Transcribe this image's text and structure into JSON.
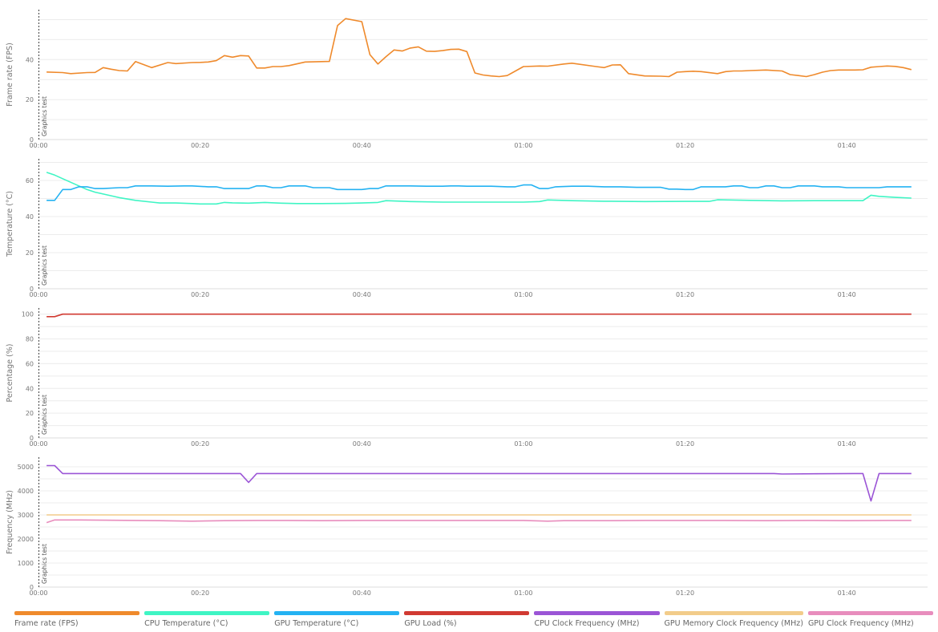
{
  "marker_label": "Graphics test",
  "x_ticks": [
    "00:00",
    "00:20",
    "00:40",
    "01:00",
    "01:20",
    "01:40"
  ],
  "x_tick_values": [
    0,
    20,
    40,
    60,
    80,
    100
  ],
  "colors": {
    "fps": "#ef8a2c",
    "cpu_temp": "#3ff5c4",
    "gpu_temp": "#24b2f2",
    "gpu_load": "#d13a32",
    "cpu_clock": "#9b55d6",
    "gpu_mem_clock": "#f2cc8a",
    "gpu_clock": "#e88dbd"
  },
  "legend": [
    {
      "label": "Frame rate (FPS)",
      "color": "#ef8a2c"
    },
    {
      "label": "CPU Temperature (°C)",
      "color": "#3ff5c4"
    },
    {
      "label": "GPU Temperature (°C)",
      "color": "#24b2f2"
    },
    {
      "label": "GPU Load (%)",
      "color": "#d13a32"
    },
    {
      "label": "CPU Clock Frequency (MHz)",
      "color": "#9b55d6"
    },
    {
      "label": "GPU Memory Clock Frequency (MHz)",
      "color": "#f2cc8a"
    },
    {
      "label": "GPU Clock Frequency (MHz)",
      "color": "#e88dbd"
    }
  ],
  "chart_data": [
    {
      "type": "line",
      "ylabel": "Frame rate (FPS)",
      "xlim": [
        0,
        110
      ],
      "ylim": [
        0,
        65
      ],
      "y_ticks": [
        0,
        20,
        40
      ],
      "grid": true,
      "series": [
        {
          "name": "Frame rate (FPS)",
          "color_key": "fps",
          "x": [
            1,
            3,
            4,
            6,
            7,
            8,
            9,
            10,
            11,
            12,
            14,
            16,
            17,
            19,
            20,
            21,
            22,
            23,
            24,
            25,
            26,
            27,
            28,
            29,
            30,
            31,
            33,
            35,
            36,
            37,
            38,
            40,
            41,
            42,
            43,
            44,
            45,
            46,
            47,
            48,
            49,
            50,
            51,
            52,
            53,
            54,
            55,
            56,
            57,
            58,
            60,
            62,
            63,
            65,
            66,
            69,
            70,
            71,
            72,
            73,
            75,
            77,
            78,
            79,
            80,
            81,
            82,
            84,
            85,
            86,
            87,
            88,
            90,
            92,
            93,
            94,
            95,
            96,
            97,
            98,
            99,
            101,
            102,
            103,
            104,
            105,
            106,
            107,
            108
          ],
          "values": [
            33.8,
            33.5,
            33.0,
            33.5,
            33.6,
            36.0,
            35.2,
            34.5,
            34.3,
            39.0,
            36.0,
            38.5,
            38.0,
            38.5,
            38.6,
            38.8,
            39.5,
            42.0,
            41.2,
            42.0,
            41.8,
            35.8,
            35.8,
            36.5,
            36.5,
            37.0,
            38.8,
            39.0,
            39.1,
            57.0,
            60.5,
            59.0,
            42.5,
            37.8,
            41.5,
            44.8,
            44.3,
            45.8,
            46.4,
            44.2,
            44.1,
            44.5,
            45.1,
            45.2,
            44.0,
            33.3,
            32.3,
            31.8,
            31.5,
            32.0,
            36.5,
            36.8,
            36.7,
            37.8,
            38.2,
            36.5,
            36.0,
            37.3,
            37.4,
            33.0,
            31.8,
            31.7,
            31.5,
            33.7,
            34.0,
            34.2,
            34.0,
            33.0,
            34.0,
            34.3,
            34.3,
            34.5,
            34.8,
            34.3,
            32.5,
            32.0,
            31.5,
            32.5,
            33.7,
            34.5,
            34.8,
            34.8,
            34.9,
            36.2,
            36.5,
            36.8,
            36.6,
            36.0,
            35.0
          ]
        }
      ]
    },
    {
      "type": "line",
      "ylabel": "Temperature (°C)",
      "xlim": [
        0,
        110
      ],
      "ylim": [
        0,
        72
      ],
      "y_ticks": [
        0,
        20,
        40,
        60
      ],
      "grid": true,
      "series": [
        {
          "name": "CPU Temperature (°C)",
          "color_key": "cpu_temp",
          "x": [
            1,
            2,
            3,
            4,
            5,
            6,
            7,
            8,
            10,
            12,
            14,
            15,
            17,
            19,
            20,
            22,
            23,
            24,
            26,
            28,
            30,
            32,
            35,
            38,
            40,
            42,
            43,
            46,
            50,
            55,
            60,
            62,
            63,
            66,
            70,
            75,
            80,
            83,
            84,
            88,
            92,
            96,
            100,
            102,
            103,
            104,
            106,
            108
          ],
          "values": [
            64.5,
            63.0,
            61.0,
            59.0,
            57.0,
            55.0,
            53.5,
            52.5,
            50.5,
            49.0,
            48.0,
            47.5,
            47.5,
            47.2,
            47.0,
            47.0,
            47.8,
            47.6,
            47.4,
            47.8,
            47.4,
            47.2,
            47.2,
            47.3,
            47.5,
            47.8,
            48.8,
            48.3,
            48.0,
            48.0,
            48.0,
            48.3,
            49.2,
            48.8,
            48.5,
            48.3,
            48.4,
            48.4,
            49.3,
            49.0,
            48.7,
            48.8,
            48.8,
            48.8,
            51.8,
            51.2,
            50.6,
            50.2
          ]
        },
        {
          "name": "GPU Temperature (°C)",
          "color_key": "gpu_temp",
          "x": [
            1,
            2,
            3,
            4,
            5,
            6,
            7,
            8,
            10,
            11,
            12,
            14,
            16,
            18,
            19,
            21,
            22,
            23,
            24,
            25,
            26,
            27,
            28,
            29,
            30,
            31,
            32,
            33,
            34,
            35,
            36,
            37,
            38,
            39,
            40,
            41,
            42,
            43,
            44,
            46,
            48,
            49,
            50,
            51,
            52,
            53,
            54,
            56,
            58,
            59,
            60,
            61,
            62,
            63,
            64,
            66,
            68,
            70,
            72,
            74,
            76,
            77,
            78,
            79,
            80,
            81,
            82,
            84,
            85,
            86,
            87,
            88,
            89,
            90,
            91,
            92,
            93,
            94,
            95,
            96,
            97,
            98,
            99,
            100,
            101,
            102,
            103,
            104,
            105,
            106,
            107,
            108
          ],
          "values": [
            49,
            49,
            55,
            55,
            56.5,
            56.5,
            55.5,
            55.5,
            56,
            56,
            57,
            57,
            56.8,
            57,
            57,
            56.5,
            56.5,
            55.5,
            55.5,
            55.5,
            55.5,
            57,
            57,
            56,
            56,
            57,
            57,
            57,
            56,
            56,
            56,
            55,
            55,
            55,
            55,
            55.5,
            55.5,
            57,
            57,
            57,
            56.8,
            56.8,
            56.8,
            57,
            57,
            56.8,
            56.8,
            56.8,
            56.5,
            56.5,
            57.5,
            57.5,
            55.5,
            55.5,
            56.5,
            56.8,
            56.8,
            56.5,
            56.5,
            56.2,
            56.2,
            56.2,
            55.2,
            55.2,
            55,
            55,
            56.5,
            56.5,
            56.5,
            57,
            57,
            56,
            56,
            57,
            57,
            56,
            56,
            57,
            57,
            57,
            56.5,
            56.5,
            56.5,
            56,
            56,
            56,
            56,
            56,
            56.5,
            56.5,
            56.5,
            56.5
          ]
        }
      ]
    },
    {
      "type": "line",
      "ylabel": "Percentage (%)",
      "xlim": [
        0,
        110
      ],
      "ylim": [
        0,
        105
      ],
      "y_ticks": [
        0,
        20,
        40,
        60,
        80,
        100
      ],
      "grid": true,
      "series": [
        {
          "name": "GPU Load (%)",
          "color_key": "gpu_load",
          "x": [
            1,
            2,
            3,
            108
          ],
          "values": [
            98,
            98,
            100,
            100
          ]
        }
      ]
    },
    {
      "type": "line",
      "ylabel": "Frequency (MHz)",
      "xlim": [
        0,
        110
      ],
      "ylim": [
        0,
        5400
      ],
      "y_ticks": [
        0,
        1000,
        2000,
        3000,
        4000,
        5000
      ],
      "grid": true,
      "series": [
        {
          "name": "CPU Clock Frequency (MHz)",
          "color_key": "cpu_clock",
          "x": [
            1,
            2,
            3,
            25,
            26,
            27,
            91,
            92,
            101,
            102,
            103,
            104,
            105,
            108
          ],
          "values": [
            5050,
            5050,
            4720,
            4720,
            4350,
            4720,
            4720,
            4700,
            4720,
            4720,
            3580,
            4720,
            4720,
            4720
          ]
        },
        {
          "name": "GPU Memory Clock Frequency (MHz)",
          "color_key": "gpu_mem_clock",
          "x": [
            1,
            108
          ],
          "values": [
            3000,
            3000
          ]
        },
        {
          "name": "GPU Clock Frequency (MHz)",
          "color_key": "gpu_clock",
          "x": [
            1,
            2,
            5,
            8,
            12,
            15,
            19,
            23,
            27,
            31,
            35,
            40,
            50,
            60,
            63,
            65,
            70,
            75,
            80,
            85,
            90,
            95,
            100,
            105,
            108
          ],
          "values": [
            2680,
            2790,
            2790,
            2780,
            2770,
            2760,
            2740,
            2760,
            2770,
            2770,
            2760,
            2770,
            2770,
            2770,
            2740,
            2760,
            2760,
            2770,
            2770,
            2770,
            2760,
            2770,
            2760,
            2770,
            2770
          ]
        }
      ]
    }
  ]
}
